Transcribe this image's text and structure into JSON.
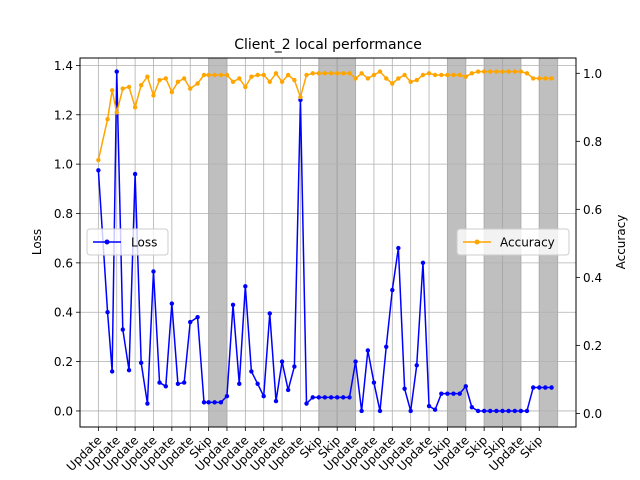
{
  "chart_data": {
    "type": "line",
    "title": "Client_2 local performance",
    "ylabel": "Loss",
    "y2label": "Accuracy",
    "xlabel": "",
    "ylim": [
      -0.065,
      1.43
    ],
    "y2lim": [
      -0.04,
      1.045
    ],
    "yticks": [
      "0.0",
      "0.2",
      "0.4",
      "0.6",
      "0.8",
      "1.0",
      "1.2",
      "1.4"
    ],
    "y2ticks": [
      "0.0",
      "0.2",
      "0.4",
      "0.6",
      "0.8",
      "1.0"
    ],
    "grid": true,
    "x_range": [
      -1,
      26
    ],
    "x_ticks": [
      {
        "x": 0,
        "label": "Update"
      },
      {
        "x": 1,
        "label": "Update"
      },
      {
        "x": 2,
        "label": "Update"
      },
      {
        "x": 3,
        "label": "Update"
      },
      {
        "x": 4,
        "label": "Update"
      },
      {
        "x": 5,
        "label": "Update"
      },
      {
        "x": 6,
        "label": "Skip"
      },
      {
        "x": 7,
        "label": "Update"
      },
      {
        "x": 8,
        "label": "Update"
      },
      {
        "x": 9,
        "label": "Update"
      },
      {
        "x": 10,
        "label": "Update"
      },
      {
        "x": 11,
        "label": "Update"
      },
      {
        "x": 12,
        "label": "Skip"
      },
      {
        "x": 13,
        "label": "Skip"
      },
      {
        "x": 14,
        "label": "Update"
      },
      {
        "x": 15,
        "label": "Update"
      },
      {
        "x": 16,
        "label": "Update"
      },
      {
        "x": 17,
        "label": "Update"
      },
      {
        "x": 18,
        "label": "Update"
      },
      {
        "x": 19,
        "label": "Skip"
      },
      {
        "x": 20,
        "label": "Update"
      },
      {
        "x": 21,
        "label": "Skip"
      },
      {
        "x": 22,
        "label": "Skip"
      },
      {
        "x": 23,
        "label": "Update"
      },
      {
        "x": 24,
        "label": "Skip"
      }
    ],
    "skip_rounds": [
      6,
      12,
      13,
      19,
      21,
      22,
      24
    ],
    "series": [
      {
        "name": "Loss",
        "axis": "left",
        "color": "#0000ff",
        "points": [
          [
            0,
            0.975
          ],
          [
            0.5,
            0.4
          ],
          [
            0.75,
            0.16
          ],
          [
            1,
            1.375
          ],
          [
            1.33,
            0.33
          ],
          [
            1.67,
            0.165
          ],
          [
            2,
            0.96
          ],
          [
            2.33,
            0.195
          ],
          [
            2.67,
            0.03
          ],
          [
            3,
            0.565
          ],
          [
            3.33,
            0.115
          ],
          [
            3.67,
            0.1
          ],
          [
            4,
            0.435
          ],
          [
            4.33,
            0.11
          ],
          [
            4.67,
            0.115
          ],
          [
            5,
            0.36
          ],
          [
            5.4,
            0.38
          ],
          [
            5.75,
            0.035
          ],
          [
            6,
            0.035
          ],
          [
            6.33,
            0.035
          ],
          [
            6.67,
            0.035
          ],
          [
            7,
            0.06
          ],
          [
            7.33,
            0.43
          ],
          [
            7.67,
            0.11
          ],
          [
            8,
            0.505
          ],
          [
            8.33,
            0.16
          ],
          [
            8.67,
            0.11
          ],
          [
            9,
            0.06
          ],
          [
            9.33,
            0.395
          ],
          [
            9.67,
            0.04
          ],
          [
            10,
            0.2
          ],
          [
            10.33,
            0.085
          ],
          [
            10.67,
            0.18
          ],
          [
            11,
            1.26
          ],
          [
            11.33,
            0.03
          ],
          [
            11.67,
            0.055
          ],
          [
            12,
            0.055
          ],
          [
            12.33,
            0.055
          ],
          [
            12.67,
            0.055
          ],
          [
            13,
            0.055
          ],
          [
            13.33,
            0.055
          ],
          [
            13.67,
            0.055
          ],
          [
            14,
            0.2
          ],
          [
            14.33,
            0.0
          ],
          [
            14.67,
            0.245
          ],
          [
            15,
            0.115
          ],
          [
            15.33,
            0.0
          ],
          [
            15.67,
            0.26
          ],
          [
            16,
            0.49
          ],
          [
            16.33,
            0.66
          ],
          [
            16.67,
            0.09
          ],
          [
            17,
            0.0
          ],
          [
            17.33,
            0.185
          ],
          [
            17.67,
            0.6
          ],
          [
            18,
            0.02
          ],
          [
            18.33,
            0.005
          ],
          [
            18.67,
            0.07
          ],
          [
            19,
            0.07
          ],
          [
            19.33,
            0.07
          ],
          [
            19.67,
            0.07
          ],
          [
            20,
            0.1
          ],
          [
            20.33,
            0.015
          ],
          [
            20.67,
            0.0
          ],
          [
            21,
            0.0
          ],
          [
            21.33,
            0.0
          ],
          [
            21.67,
            0.0
          ],
          [
            22,
            0.0
          ],
          [
            22.33,
            0.0
          ],
          [
            22.67,
            0.0
          ],
          [
            23,
            0.0
          ],
          [
            23.33,
            0.0
          ],
          [
            23.67,
            0.095
          ],
          [
            24,
            0.095
          ],
          [
            24.33,
            0.095
          ],
          [
            24.67,
            0.095
          ]
        ]
      },
      {
        "name": "Accuracy",
        "axis": "right",
        "color": "#ffa500",
        "points": [
          [
            0,
            0.745
          ],
          [
            0.5,
            0.865
          ],
          [
            0.75,
            0.95
          ],
          [
            1,
            0.885
          ],
          [
            1.33,
            0.955
          ],
          [
            1.67,
            0.96
          ],
          [
            2,
            0.9
          ],
          [
            2.33,
            0.965
          ],
          [
            2.67,
            0.99
          ],
          [
            3,
            0.935
          ],
          [
            3.33,
            0.98
          ],
          [
            3.67,
            0.985
          ],
          [
            4,
            0.945
          ],
          [
            4.33,
            0.975
          ],
          [
            4.67,
            0.985
          ],
          [
            5,
            0.955
          ],
          [
            5.4,
            0.97
          ],
          [
            5.75,
            0.995
          ],
          [
            6,
            0.995
          ],
          [
            6.33,
            0.995
          ],
          [
            6.67,
            0.995
          ],
          [
            7,
            0.995
          ],
          [
            7.33,
            0.975
          ],
          [
            7.67,
            0.985
          ],
          [
            8,
            0.96
          ],
          [
            8.33,
            0.99
          ],
          [
            8.67,
            0.995
          ],
          [
            9,
            0.995
          ],
          [
            9.33,
            0.975
          ],
          [
            9.67,
            1.0
          ],
          [
            10,
            0.975
          ],
          [
            10.33,
            0.995
          ],
          [
            10.67,
            0.98
          ],
          [
            11,
            0.93
          ],
          [
            11.33,
            0.995
          ],
          [
            11.67,
            1.0
          ],
          [
            12,
            1.0
          ],
          [
            12.33,
            1.0
          ],
          [
            12.67,
            1.0
          ],
          [
            13,
            1.0
          ],
          [
            13.33,
            1.0
          ],
          [
            13.67,
            1.0
          ],
          [
            14,
            0.985
          ],
          [
            14.33,
            1.0
          ],
          [
            14.67,
            0.985
          ],
          [
            15,
            0.995
          ],
          [
            15.33,
            1.005
          ],
          [
            15.67,
            0.985
          ],
          [
            16,
            0.97
          ],
          [
            16.33,
            0.985
          ],
          [
            16.67,
            0.995
          ],
          [
            17,
            0.975
          ],
          [
            17.33,
            0.98
          ],
          [
            17.67,
            0.995
          ],
          [
            18,
            1.0
          ],
          [
            18.33,
            0.995
          ],
          [
            18.67,
            0.995
          ],
          [
            19,
            0.995
          ],
          [
            19.33,
            0.995
          ],
          [
            19.67,
            0.995
          ],
          [
            20,
            0.99
          ],
          [
            20.33,
            1.0
          ],
          [
            20.67,
            1.005
          ],
          [
            21,
            1.005
          ],
          [
            21.33,
            1.005
          ],
          [
            21.67,
            1.005
          ],
          [
            22,
            1.005
          ],
          [
            22.33,
            1.005
          ],
          [
            22.67,
            1.005
          ],
          [
            23,
            1.005
          ],
          [
            23.33,
            1.0
          ],
          [
            23.67,
            0.985
          ],
          [
            24,
            0.985
          ],
          [
            24.33,
            0.985
          ],
          [
            24.67,
            0.985
          ]
        ]
      }
    ],
    "legends": [
      {
        "series": "Loss",
        "placement": "center-left"
      },
      {
        "series": "Accuracy",
        "placement": "center-right"
      }
    ]
  }
}
